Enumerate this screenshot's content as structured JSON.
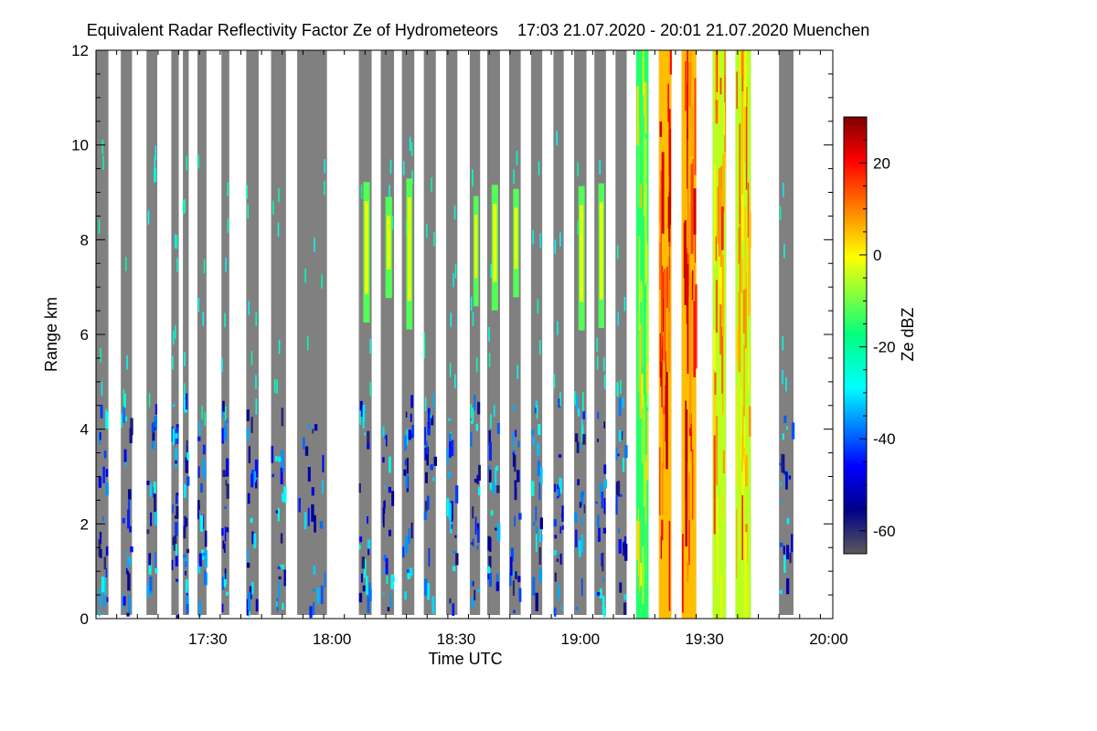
{
  "chart_data": {
    "type": "heatmap",
    "title": "Equivalent Radar Reflectivity Factor Ze of Hydrometeors",
    "subtitle": "17:03 21.07.2020 - 20:01 21.07.2020 Muenchen",
    "xlabel": "Time UTC",
    "ylabel": "Range km",
    "x_range_minutes": [
      1023,
      1201
    ],
    "x_ticks": [
      {
        "value": 1050,
        "label": "17:30"
      },
      {
        "value": 1080,
        "label": "18:00"
      },
      {
        "value": 1110,
        "label": "18:30"
      },
      {
        "value": 1140,
        "label": "19:00"
      },
      {
        "value": 1170,
        "label": "19:30"
      },
      {
        "value": 1200,
        "label": "20:00"
      }
    ],
    "ylim": [
      0,
      12
    ],
    "y_ticks": [
      0,
      2,
      4,
      6,
      8,
      10,
      12
    ],
    "colorbar": {
      "label": "Ze dBZ",
      "range": [
        -65,
        30
      ],
      "ticks": [
        -60,
        -40,
        -20,
        0,
        20
      ],
      "colormap": [
        "#595959",
        "#00008b",
        "#0000ff",
        "#00ffff",
        "#00ff7f",
        "#ffff00",
        "#ff8000",
        "#ff0000",
        "#800000"
      ]
    },
    "background_no_echo": "#808080",
    "profiles": [
      {
        "start": 1023.0,
        "end": 1026.0,
        "class": "clear"
      },
      {
        "start": 1029.0,
        "end": 1031.7,
        "class": "clear"
      },
      {
        "start": 1035.2,
        "end": 1037.8,
        "class": "clear"
      },
      {
        "start": 1041.2,
        "end": 1043.0,
        "class": "clear"
      },
      {
        "start": 1044.0,
        "end": 1045.4,
        "class": "clear"
      },
      {
        "start": 1047.5,
        "end": 1049.7,
        "class": "clear"
      },
      {
        "start": 1053.3,
        "end": 1055.2,
        "class": "clear"
      },
      {
        "start": 1059.3,
        "end": 1062.3,
        "class": "clear"
      },
      {
        "start": 1065.3,
        "end": 1068.9,
        "class": "clear"
      },
      {
        "start": 1071.6,
        "end": 1078.8,
        "class": "clear"
      },
      {
        "start": 1086.5,
        "end": 1089.6,
        "class": "cloud"
      },
      {
        "start": 1091.8,
        "end": 1095.0,
        "class": "cloud"
      },
      {
        "start": 1096.9,
        "end": 1099.9,
        "class": "cloud"
      },
      {
        "start": 1102.2,
        "end": 1105.1,
        "class": "clear"
      },
      {
        "start": 1107.6,
        "end": 1110.3,
        "class": "clear"
      },
      {
        "start": 1113.3,
        "end": 1115.8,
        "class": "cloud"
      },
      {
        "start": 1117.5,
        "end": 1120.6,
        "class": "cloud"
      },
      {
        "start": 1122.8,
        "end": 1125.6,
        "class": "cloud"
      },
      {
        "start": 1128.1,
        "end": 1130.8,
        "class": "clear"
      },
      {
        "start": 1133.5,
        "end": 1136.0,
        "class": "clear"
      },
      {
        "start": 1138.5,
        "end": 1141.5,
        "class": "cloud"
      },
      {
        "start": 1143.4,
        "end": 1146.2,
        "class": "cloud"
      },
      {
        "start": 1148.5,
        "end": 1151.2,
        "class": "clear"
      },
      {
        "start": 1153.5,
        "end": 1156.5,
        "class": "rain_light"
      },
      {
        "start": 1159.0,
        "end": 1162.0,
        "class": "rain_heavy"
      },
      {
        "start": 1164.5,
        "end": 1168.0,
        "class": "rain_heavy"
      },
      {
        "start": 1172.0,
        "end": 1175.2,
        "class": "rain_mixed"
      },
      {
        "start": 1177.5,
        "end": 1181.2,
        "class": "rain_mixed"
      },
      {
        "start": 1188.0,
        "end": 1191.5,
        "class": "clear"
      }
    ]
  }
}
